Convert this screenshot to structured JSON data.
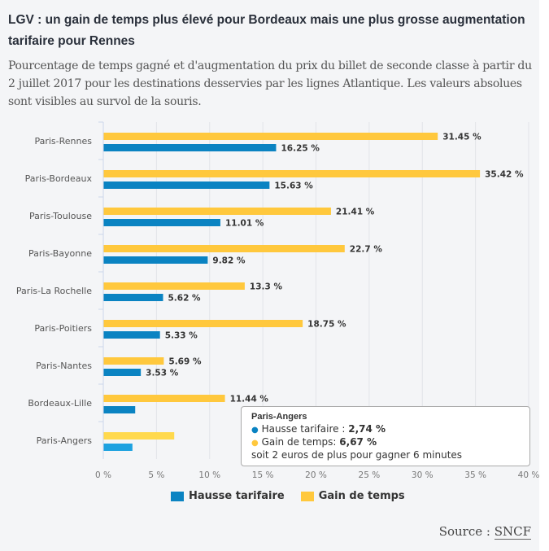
{
  "title": "LGV : un gain de temps plus élevé pour Bordeaux mais une plus grosse augmentation tarifaire pour Rennes",
  "subtitle": "Pourcentage de temps gagné et d'augmentation du prix du billet de seconde classe à partir du 2 juillet 2017 pour les destinations desservies par les lignes Atlantique. Les valeurs absolues sont visibles au survol de la souris.",
  "chart_data": {
    "type": "bar",
    "orientation": "horizontal",
    "categories": [
      "Paris-Rennes",
      "Paris-Bordeaux",
      "Paris-Toulouse",
      "Paris-Bayonne",
      "Paris-La Rochelle",
      "Paris-Poitiers",
      "Paris-Nantes",
      "Bordeaux-Lille",
      "Paris-Angers"
    ],
    "series": [
      {
        "name": "Gain de temps",
        "color": "#ffc83d",
        "values": [
          31.45,
          35.42,
          21.41,
          22.7,
          13.3,
          18.75,
          5.69,
          11.44,
          6.67
        ],
        "labels": [
          "31.45 %",
          "35.42 %",
          "21.41 %",
          "22.7 %",
          "13.3 %",
          "18.75 %",
          "5.69 %",
          "11.44 %",
          ""
        ]
      },
      {
        "name": "Hausse tarifaire",
        "color": "#0a83c2",
        "values": [
          16.25,
          15.63,
          11.01,
          9.82,
          5.62,
          5.33,
          3.53,
          3.0,
          2.74
        ],
        "labels": [
          "16.25 %",
          "15.63 %",
          "11.01 %",
          "9.82 %",
          "5.62 %",
          "5.33 %",
          "3.53 %",
          "",
          ""
        ]
      }
    ],
    "xlim": [
      0,
      40
    ],
    "xticks": [
      "0 %",
      "5 %",
      "10 %",
      "15 %",
      "20 %",
      "25 %",
      "30 %",
      "35 %",
      "40 %"
    ],
    "grid": true,
    "legend": "bottom"
  },
  "tooltip": {
    "title": "Paris-Angers",
    "line1_label": "Hausse tarifaire : ",
    "line1_value": "2,74 %",
    "line2_label": "Gain de temps: ",
    "line2_value": "6,67 %",
    "note": "soit 2 euros de plus pour gagner 6 minutes"
  },
  "legend": {
    "items": [
      "Hausse tarifaire",
      "Gain de temps"
    ]
  },
  "source": {
    "label": "Source : ",
    "link": "SNCF"
  }
}
